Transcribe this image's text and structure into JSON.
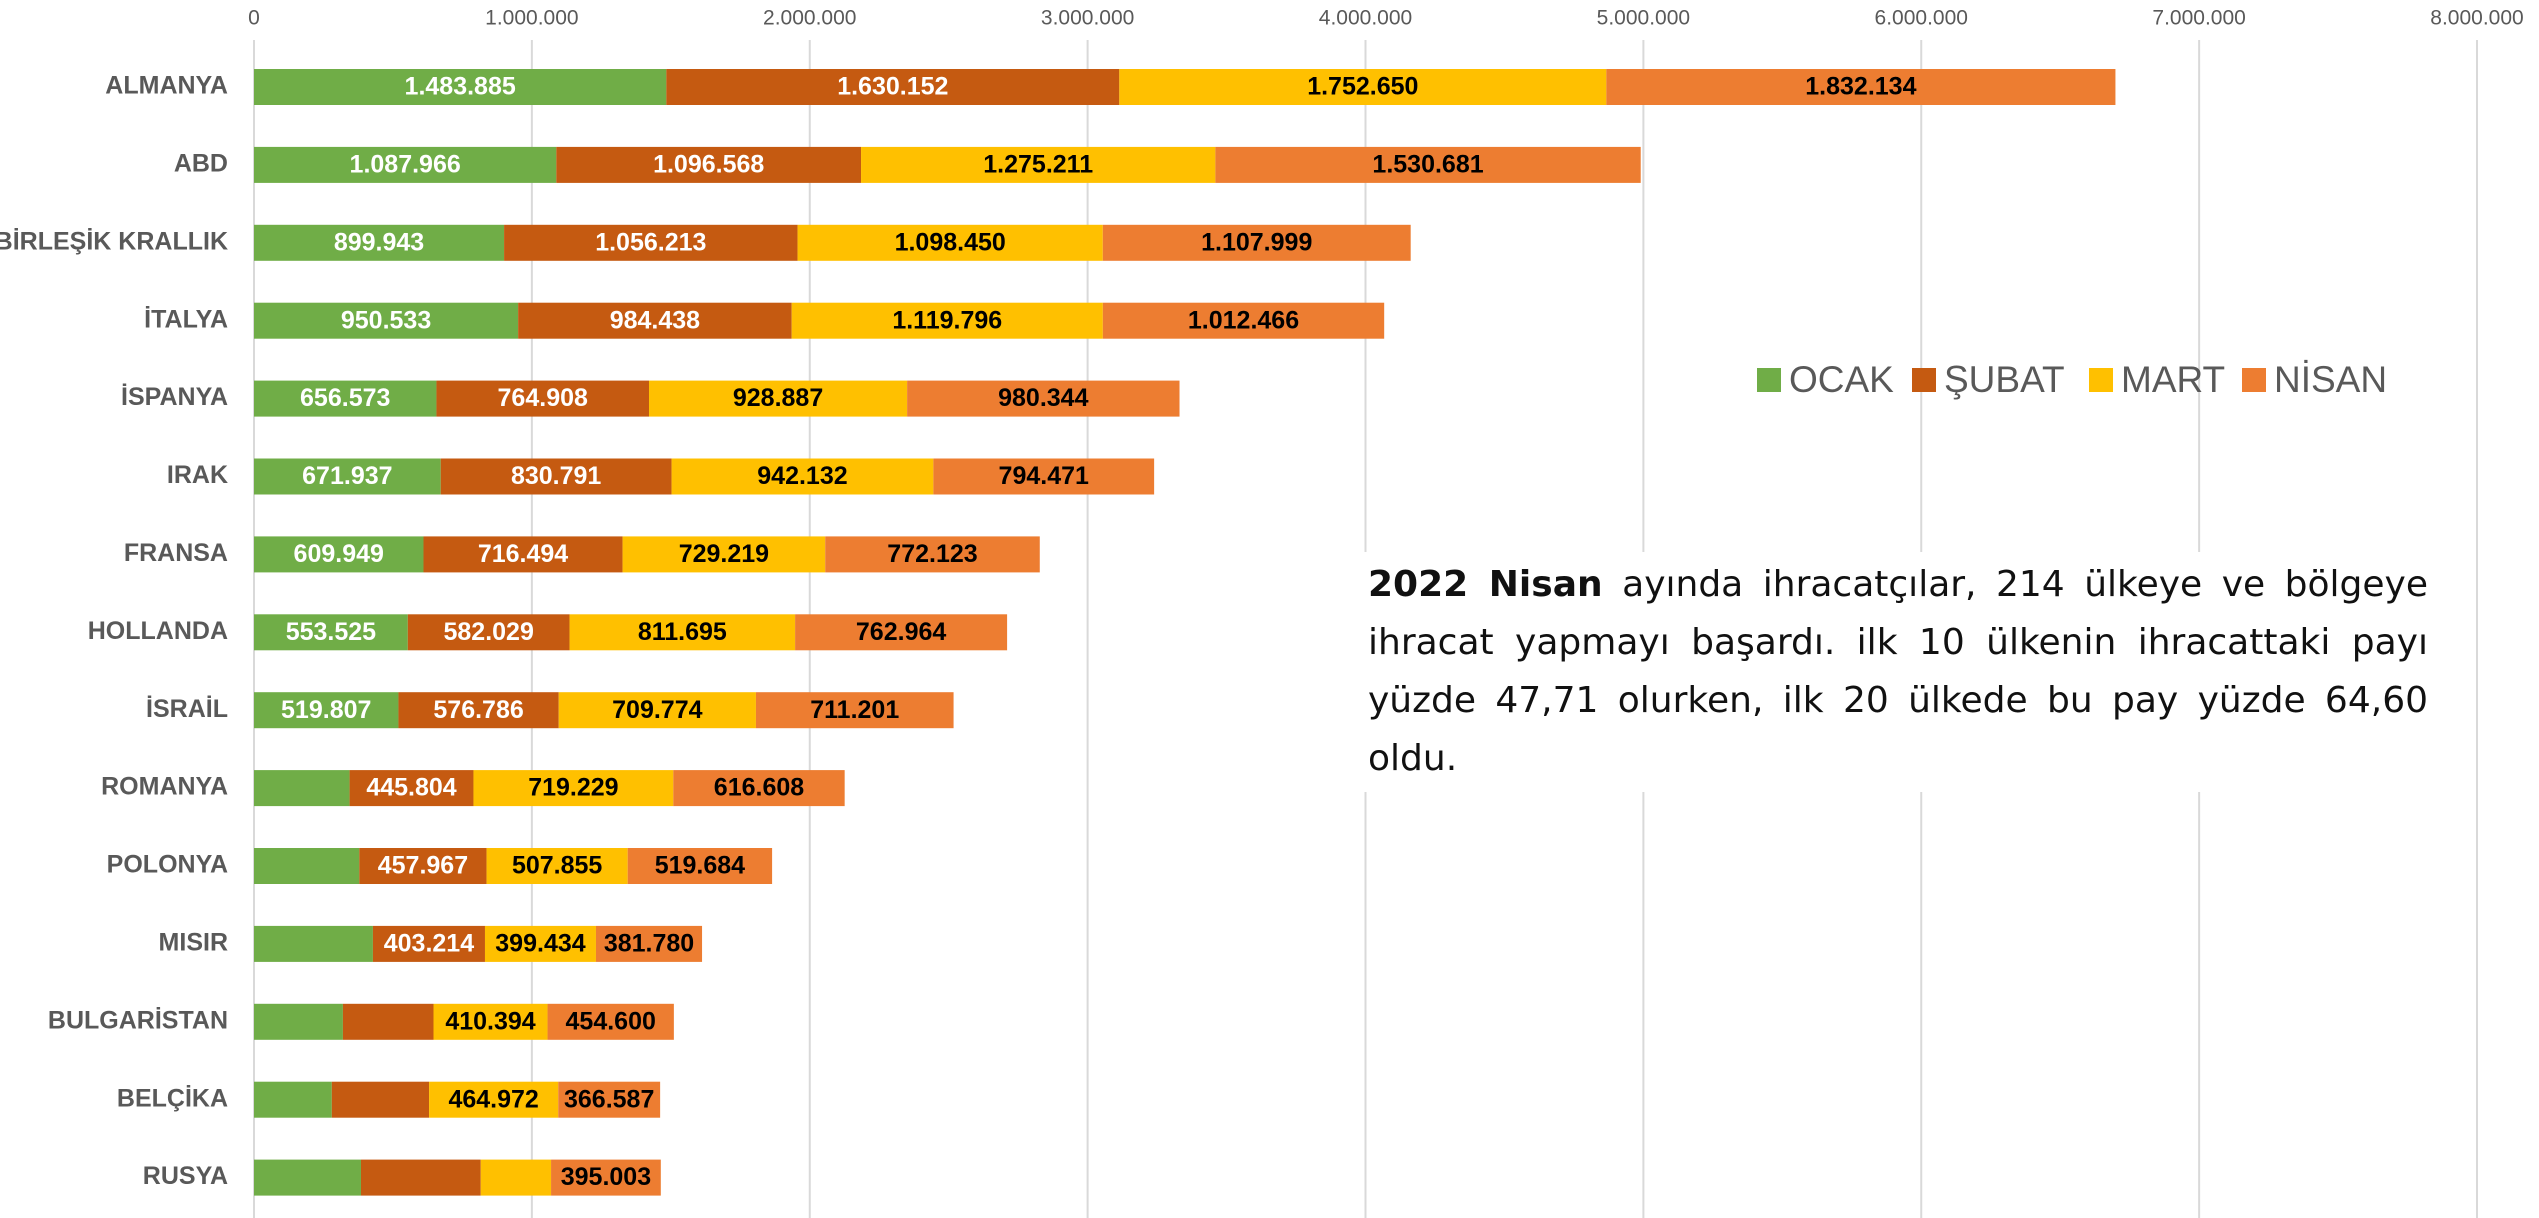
{
  "chart_data": {
    "type": "stacked_bar_horizontal",
    "categories": [
      "ALMANYA",
      "ABD",
      "BİRLEŞİK KRALLIK",
      "İTALYA",
      "İSPANYA",
      "IRAK",
      "FRANSA",
      "HOLLANDA",
      "İSRAİL",
      "ROMANYA",
      "POLONYA",
      "MISIR",
      "BULGARİSTAN",
      "BELÇİKA",
      "RUSYA"
    ],
    "series": [
      {
        "name": "OCAK",
        "color": "#70ad47",
        "label_color": "#ffffff",
        "values": [
          1483885,
          1087966,
          899943,
          950533,
          656573,
          671937,
          609949,
          553525,
          519807,
          344000,
          379000,
          428000,
          320000,
          280000,
          385000
        ],
        "value_labels": [
          "1.483.885",
          "1.087.966",
          "899.943",
          "950.533",
          "656.573",
          "671.937",
          "609.949",
          "553.525",
          "519.807",
          null,
          null,
          null,
          null,
          null,
          null
        ]
      },
      {
        "name": "ŞUBAT",
        "color": "#c55a11",
        "label_color": "#ffffff",
        "values": [
          1630152,
          1096568,
          1056213,
          984438,
          764908,
          830791,
          716494,
          582029,
          576786,
          445804,
          457967,
          403214,
          326000,
          350000,
          431000
        ],
        "value_labels": [
          "1.630.152",
          "1.096.568",
          "1.056.213",
          "984.438",
          "764.908",
          "830.791",
          "716.494",
          "582.029",
          "576.786",
          "445.804",
          "457.967",
          "403.214",
          null,
          null,
          null
        ]
      },
      {
        "name": "MART",
        "color": "#ffc000",
        "label_color": "#000000",
        "values": [
          1752650,
          1275211,
          1098450,
          1119796,
          928887,
          942132,
          729219,
          811695,
          709774,
          719229,
          507855,
          399434,
          410394,
          464972,
          253000
        ],
        "value_labels": [
          "1.752.650",
          "1.275.211",
          "1.098.450",
          "1.119.796",
          "928.887",
          "942.132",
          "729.219",
          "811.695",
          "709.774",
          "719.229",
          "507.855",
          "399.434",
          "410.394",
          "464.972",
          null
        ]
      },
      {
        "name": "NİSAN",
        "color": "#ed7d31",
        "label_color": "#000000",
        "values": [
          1832134,
          1530681,
          1107999,
          1012466,
          980344,
          794471,
          772123,
          762964,
          711201,
          616608,
          519684,
          381780,
          454600,
          366587,
          395003
        ],
        "value_labels": [
          "1.832.134",
          "1.530.681",
          "1.107.999",
          "1.012.466",
          "980.344",
          "794.471",
          "772.123",
          "762.964",
          "711.201",
          "616.608",
          "519.684",
          "381.780",
          "454.600",
          "366.587",
          "395.003"
        ]
      }
    ],
    "xlim": [
      0,
      8000000
    ],
    "xticks": [
      0,
      {
        "value": 1000000,
        "label": "1.000.000"
      },
      {
        "value": 2000000,
        "label": "2.000.000"
      },
      {
        "value": 3000000,
        "label": "3.000.000"
      },
      {
        "value": 4000000,
        "label": "4.000.000"
      },
      {
        "value": 5000000,
        "label": "5.000.000"
      },
      {
        "value": 6000000,
        "label": "6.000.000"
      },
      {
        "value": 7000000,
        "label": "7.000.000"
      },
      {
        "value": 8000000,
        "label": "8.000.000"
      }
    ],
    "grid": true,
    "legend": "right",
    "annotation": {
      "bold": "2022 Nisan",
      "text": "ayında ihracatçılar, 214 ülkeye ve bölgeye ihracat yapmayı başardı. ilk 10 ülkenin ihracattaki payı yüzde 47,71 olurken, ilk 20 ülkede bu pay yüzde 64,60 oldu."
    }
  }
}
